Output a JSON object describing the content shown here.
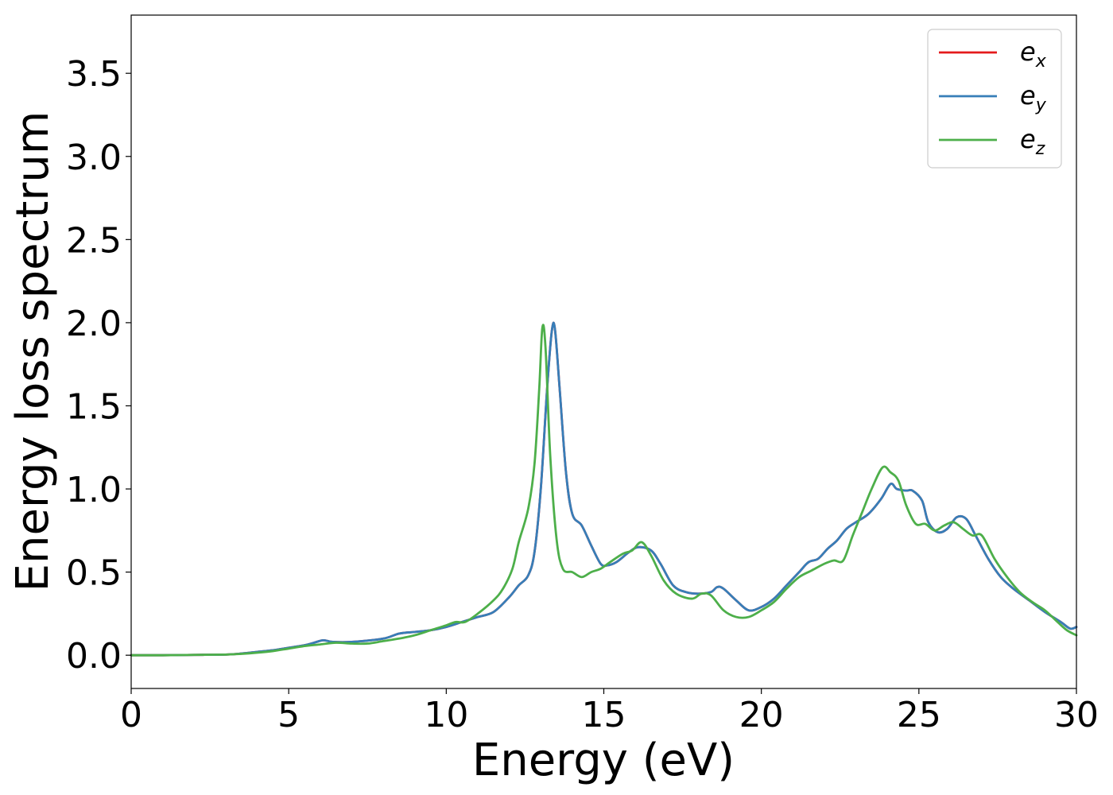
{
  "chart_data": {
    "type": "line",
    "title": "",
    "xlabel": "Energy (eV)",
    "ylabel": "Energy loss spectrum",
    "xlim": [
      0,
      30
    ],
    "ylim": [
      -0.2,
      3.85
    ],
    "xticks": [
      0,
      5,
      10,
      15,
      20,
      25,
      30
    ],
    "xtick_labels": [
      "0",
      "5",
      "10",
      "15",
      "20",
      "25",
      "30"
    ],
    "yticks": [
      0.0,
      0.5,
      1.0,
      1.5,
      2.0,
      2.5,
      3.0,
      3.5
    ],
    "ytick_labels": [
      "0.0",
      "0.5",
      "1.0",
      "1.5",
      "2.0",
      "2.5",
      "3.0",
      "3.5"
    ],
    "grid": false,
    "legend_position": "top-right",
    "series": [
      {
        "name": "e_x",
        "legend_base": "e",
        "legend_sub": "x",
        "color": "#e41a1c",
        "x": [
          0,
          1,
          2,
          3,
          3.5,
          4,
          4.5,
          5,
          5.5,
          5.8,
          6.1,
          6.4,
          7,
          8,
          8.5,
          9,
          9.5,
          10,
          10.5,
          11,
          11.5,
          12,
          12.3,
          12.6,
          12.8,
          13.0,
          13.2,
          13.35,
          13.45,
          13.6,
          13.8,
          14.0,
          14.3,
          14.6,
          14.9,
          15.1,
          15.4,
          15.8,
          16.1,
          16.5,
          16.8,
          17.2,
          17.6,
          18.0,
          18.4,
          18.6,
          18.8,
          19.2,
          19.6,
          20.0,
          20.4,
          20.8,
          21.2,
          21.5,
          21.8,
          22.1,
          22.4,
          22.7,
          23.0,
          23.4,
          23.8,
          24.1,
          24.3,
          24.6,
          24.8,
          25.1,
          25.3,
          25.6,
          25.9,
          26.2,
          26.5,
          26.8,
          27.2,
          27.6,
          28.0,
          28.5,
          29.0,
          29.5,
          29.8,
          30.0
        ],
        "y": [
          0.0,
          0.0,
          0.002,
          0.004,
          0.01,
          0.02,
          0.03,
          0.045,
          0.06,
          0.075,
          0.09,
          0.08,
          0.08,
          0.1,
          0.13,
          0.14,
          0.15,
          0.17,
          0.2,
          0.23,
          0.26,
          0.35,
          0.42,
          0.48,
          0.62,
          1.0,
          1.6,
          1.95,
          1.96,
          1.6,
          1.1,
          0.85,
          0.78,
          0.66,
          0.55,
          0.54,
          0.56,
          0.62,
          0.65,
          0.63,
          0.55,
          0.42,
          0.38,
          0.37,
          0.38,
          0.41,
          0.4,
          0.33,
          0.27,
          0.29,
          0.34,
          0.42,
          0.5,
          0.56,
          0.58,
          0.64,
          0.69,
          0.76,
          0.8,
          0.85,
          0.94,
          1.03,
          1.0,
          0.99,
          0.99,
          0.93,
          0.8,
          0.74,
          0.76,
          0.83,
          0.82,
          0.72,
          0.58,
          0.47,
          0.4,
          0.33,
          0.26,
          0.2,
          0.16,
          0.17
        ]
      },
      {
        "name": "e_y",
        "legend_base": "e",
        "legend_sub": "y",
        "color": "#377eb8",
        "x": [
          0,
          1,
          2,
          3,
          3.5,
          4,
          4.5,
          5,
          5.5,
          5.8,
          6.1,
          6.4,
          7,
          8,
          8.5,
          9,
          9.5,
          10,
          10.5,
          11,
          11.5,
          12,
          12.3,
          12.6,
          12.8,
          13.0,
          13.2,
          13.35,
          13.45,
          13.6,
          13.8,
          14.0,
          14.3,
          14.6,
          14.9,
          15.1,
          15.4,
          15.8,
          16.1,
          16.5,
          16.8,
          17.2,
          17.6,
          18.0,
          18.4,
          18.6,
          18.8,
          19.2,
          19.6,
          20.0,
          20.4,
          20.8,
          21.2,
          21.5,
          21.8,
          22.1,
          22.4,
          22.7,
          23.0,
          23.4,
          23.8,
          24.1,
          24.3,
          24.6,
          24.8,
          25.1,
          25.3,
          25.6,
          25.9,
          26.2,
          26.5,
          26.8,
          27.2,
          27.6,
          28.0,
          28.5,
          29.0,
          29.5,
          29.8,
          30.0
        ],
        "y": [
          0.0,
          0.0,
          0.002,
          0.004,
          0.01,
          0.02,
          0.03,
          0.045,
          0.06,
          0.075,
          0.09,
          0.08,
          0.08,
          0.1,
          0.13,
          0.14,
          0.15,
          0.17,
          0.2,
          0.23,
          0.26,
          0.35,
          0.42,
          0.48,
          0.62,
          1.0,
          1.6,
          1.95,
          1.96,
          1.6,
          1.1,
          0.85,
          0.78,
          0.66,
          0.55,
          0.54,
          0.56,
          0.62,
          0.65,
          0.63,
          0.55,
          0.42,
          0.38,
          0.37,
          0.38,
          0.41,
          0.4,
          0.33,
          0.27,
          0.29,
          0.34,
          0.42,
          0.5,
          0.56,
          0.58,
          0.64,
          0.69,
          0.76,
          0.8,
          0.85,
          0.94,
          1.03,
          1.0,
          0.99,
          0.99,
          0.93,
          0.8,
          0.74,
          0.76,
          0.83,
          0.82,
          0.72,
          0.58,
          0.47,
          0.4,
          0.33,
          0.26,
          0.2,
          0.16,
          0.17
        ]
      },
      {
        "name": "e_z",
        "legend_base": "e",
        "legend_sub": "z",
        "color": "#4daf4a",
        "x": [
          0,
          1,
          2,
          3,
          3.5,
          4,
          4.5,
          5,
          5.5,
          6,
          6.5,
          7,
          7.5,
          8,
          8.5,
          9,
          9.5,
          10,
          10.3,
          10.6,
          11,
          11.5,
          11.8,
          12.1,
          12.3,
          12.6,
          12.8,
          12.95,
          13.05,
          13.15,
          13.3,
          13.5,
          13.7,
          14.0,
          14.3,
          14.6,
          14.9,
          15.2,
          15.6,
          15.9,
          16.2,
          16.5,
          16.9,
          17.3,
          17.8,
          18.1,
          18.4,
          18.8,
          19.2,
          19.6,
          20.0,
          20.4,
          20.8,
          21.2,
          21.6,
          22.0,
          22.3,
          22.6,
          22.9,
          23.2,
          23.5,
          23.85,
          24.1,
          24.35,
          24.6,
          24.9,
          25.2,
          25.5,
          25.8,
          26.1,
          26.4,
          26.7,
          27.0,
          27.4,
          27.8,
          28.2,
          28.6,
          29.0,
          29.4,
          29.7,
          30.0
        ],
        "y": [
          0.0,
          0.0,
          0.002,
          0.004,
          0.008,
          0.015,
          0.025,
          0.04,
          0.055,
          0.065,
          0.075,
          0.07,
          0.07,
          0.085,
          0.1,
          0.12,
          0.15,
          0.18,
          0.2,
          0.2,
          0.25,
          0.33,
          0.4,
          0.52,
          0.68,
          0.88,
          1.15,
          1.6,
          1.97,
          1.85,
          1.2,
          0.7,
          0.52,
          0.5,
          0.47,
          0.5,
          0.52,
          0.56,
          0.61,
          0.63,
          0.68,
          0.6,
          0.45,
          0.37,
          0.34,
          0.37,
          0.36,
          0.27,
          0.23,
          0.23,
          0.27,
          0.32,
          0.4,
          0.47,
          0.51,
          0.55,
          0.57,
          0.57,
          0.72,
          0.86,
          1.0,
          1.13,
          1.1,
          1.05,
          0.9,
          0.79,
          0.79,
          0.75,
          0.78,
          0.8,
          0.76,
          0.72,
          0.72,
          0.58,
          0.47,
          0.38,
          0.32,
          0.27,
          0.2,
          0.15,
          0.12
        ]
      }
    ]
  }
}
